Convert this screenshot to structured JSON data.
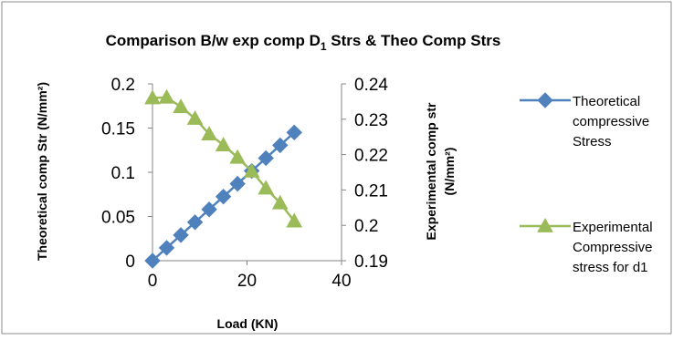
{
  "chart_data": {
    "type": "line",
    "title": {
      "main": "Comparison B/w exp comp D",
      "sub": "1",
      "rest": " Strs & Theo Comp Strs"
    },
    "xlabel": "Load (KN)",
    "ylabel_left": "Theoretical comp Str (N/mm²)",
    "ylabel_right": {
      "line1": "Experimental comp str",
      "line2": "(N/mm²)"
    },
    "x_range": [
      0,
      40
    ],
    "x_ticks": [
      "0",
      "20",
      "40"
    ],
    "y_left_range": [
      0,
      0.2
    ],
    "y_left_ticks": [
      "0",
      "0.05",
      "0.1",
      "0.15",
      "0.2"
    ],
    "y_right_range": [
      0.19,
      0.24
    ],
    "y_right_ticks": [
      "0.19",
      "0.2",
      "0.21",
      "0.22",
      "0.23",
      "0.24"
    ],
    "grid": false,
    "legend_position": "right",
    "series": [
      {
        "name_lines": [
          "Theoretical",
          "compressive",
          "Stress"
        ],
        "axis": "left",
        "marker": "diamond",
        "color": "#4f81bd",
        "x": [
          0,
          3,
          6,
          9,
          12,
          15,
          18,
          21,
          24,
          27,
          30
        ],
        "y": [
          0,
          0.0145,
          0.029,
          0.0435,
          0.058,
          0.0725,
          0.087,
          0.1015,
          0.116,
          0.1305,
          0.145
        ]
      },
      {
        "name_lines": [
          "Experimental",
          "Compressive",
          "stress for d1"
        ],
        "axis": "right",
        "marker": "triangle",
        "color": "#9bbb59",
        "x": [
          0,
          3,
          6,
          9,
          12,
          15,
          18,
          21,
          24,
          27,
          30
        ],
        "y": [
          0.236,
          0.2362,
          0.2335,
          0.2302,
          0.2258,
          0.2227,
          0.2192,
          0.2153,
          0.2105,
          0.2063,
          0.2012
        ]
      }
    ]
  }
}
